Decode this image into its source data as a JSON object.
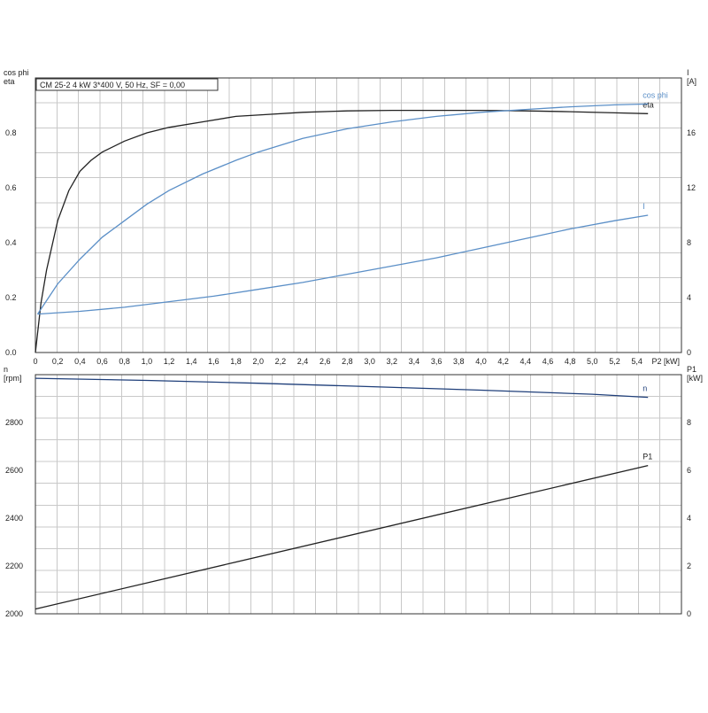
{
  "chart_data": [
    {
      "type": "line",
      "title": "CM 25-2   4 kW   3*400 V, 50 Hz, SF = 0,00",
      "xlabel": "P2 [kW]",
      "ylabel_left": "cos phi\neta",
      "ylabel_right": "I\n[A]",
      "xlim": [
        0,
        5.8
      ],
      "ylim_left": [
        0,
        1.0
      ],
      "ylim_right": [
        0,
        20
      ],
      "grid": true,
      "x_ticks": [
        "0",
        "0,2",
        "0,4",
        "0,6",
        "0,8",
        "1,0",
        "1,2",
        "1,4",
        "1,6",
        "1,8",
        "2,0",
        "2,2",
        "2,4",
        "2,6",
        "2,8",
        "3,0",
        "3,2",
        "3,4",
        "3,6",
        "3,8",
        "4,0",
        "4,2",
        "4,4",
        "4,6",
        "4,8",
        "5,0",
        "5,2",
        "5,4"
      ],
      "y_ticks_left": [
        "0.0",
        "0.2",
        "0.4",
        "0.6",
        "0.8"
      ],
      "y_ticks_right": [
        "0",
        "4",
        "8",
        "12",
        "16"
      ],
      "series": [
        {
          "name": "eta",
          "axis": "left",
          "color": "#222222",
          "x": [
            0,
            0.05,
            0.1,
            0.2,
            0.3,
            0.4,
            0.5,
            0.6,
            0.8,
            1.0,
            1.2,
            1.5,
            1.8,
            2.0,
            2.4,
            2.8,
            3.2,
            3.6,
            4.0,
            4.4,
            4.8,
            5.2,
            5.5
          ],
          "y": [
            0.0,
            0.18,
            0.3,
            0.48,
            0.59,
            0.66,
            0.7,
            0.73,
            0.77,
            0.8,
            0.82,
            0.84,
            0.86,
            0.865,
            0.875,
            0.88,
            0.882,
            0.882,
            0.882,
            0.88,
            0.877,
            0.873,
            0.87
          ]
        },
        {
          "name": "cos phi",
          "axis": "left",
          "color": "#5b8fc7",
          "x": [
            0.02,
            0.2,
            0.4,
            0.6,
            0.8,
            1.0,
            1.2,
            1.5,
            1.8,
            2.0,
            2.4,
            2.8,
            3.2,
            3.6,
            4.0,
            4.4,
            4.8,
            5.2,
            5.5
          ],
          "y": [
            0.14,
            0.25,
            0.34,
            0.42,
            0.48,
            0.54,
            0.59,
            0.65,
            0.7,
            0.73,
            0.78,
            0.815,
            0.84,
            0.86,
            0.875,
            0.885,
            0.895,
            0.902,
            0.905
          ]
        },
        {
          "name": "I",
          "axis": "right",
          "color": "#5b8fc7",
          "x": [
            0.02,
            0.4,
            0.8,
            1.2,
            1.6,
            2.0,
            2.4,
            2.8,
            3.2,
            3.6,
            4.0,
            4.4,
            4.8,
            5.2,
            5.5
          ],
          "y": [
            2.8,
            3.0,
            3.3,
            3.7,
            4.1,
            4.6,
            5.1,
            5.7,
            6.3,
            6.9,
            7.6,
            8.3,
            9.0,
            9.6,
            10.0
          ]
        }
      ]
    },
    {
      "type": "line",
      "xlim": [
        0,
        5.8
      ],
      "ylabel_left": "n\n[rpm]",
      "ylabel_right": "P1\n[kW]",
      "ylim_left": [
        2000,
        3000
      ],
      "ylim_right": [
        0,
        10
      ],
      "grid": true,
      "y_ticks_left": [
        "2000",
        "2200",
        "2400",
        "2600",
        "2800"
      ],
      "y_ticks_right": [
        "0",
        "2",
        "4",
        "6",
        "8"
      ],
      "series": [
        {
          "name": "n",
          "axis": "left",
          "color": "#1f3f7a",
          "x": [
            0,
            1.0,
            2.0,
            3.0,
            4.0,
            5.0,
            5.5
          ],
          "y": [
            2985,
            2976,
            2964,
            2950,
            2935,
            2918,
            2905
          ]
        },
        {
          "name": "P1",
          "axis": "right",
          "color": "#222222",
          "x": [
            0,
            5.5
          ],
          "y": [
            0.2,
            6.2
          ]
        }
      ]
    }
  ]
}
